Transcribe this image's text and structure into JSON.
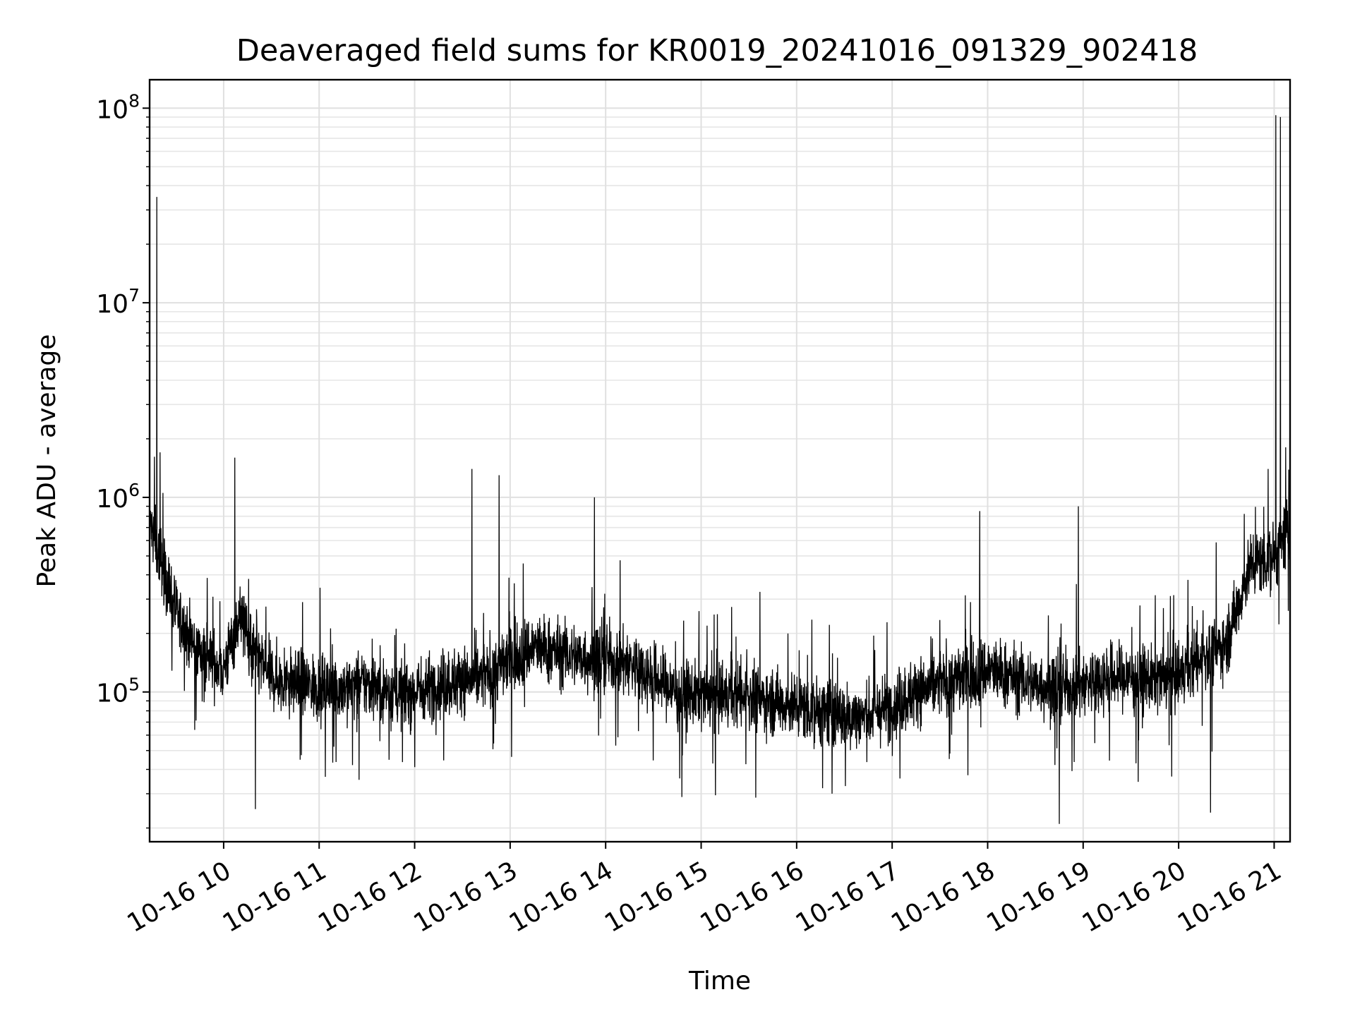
{
  "chart_data": {
    "type": "line",
    "title": "Deaveraged field sums for KR0019_20241016_091329_902418",
    "xlabel": "Time",
    "ylabel": "Peak ADU - average",
    "yscale": "log",
    "ylim": [
      17000,
      140000000
    ],
    "xlim": [
      "2024-10-16 09:13:29",
      "2024-10-16 21:10:00"
    ],
    "grid": true,
    "legend": "none",
    "line_color": "#000000",
    "x_ticks": [
      {
        "t": "2024-10-16 10:00",
        "label": "10-16 10"
      },
      {
        "t": "2024-10-16 11:00",
        "label": "10-16 11"
      },
      {
        "t": "2024-10-16 12:00",
        "label": "10-16 12"
      },
      {
        "t": "2024-10-16 13:00",
        "label": "10-16 13"
      },
      {
        "t": "2024-10-16 14:00",
        "label": "10-16 14"
      },
      {
        "t": "2024-10-16 15:00",
        "label": "10-16 15"
      },
      {
        "t": "2024-10-16 16:00",
        "label": "10-16 16"
      },
      {
        "t": "2024-10-16 17:00",
        "label": "10-16 17"
      },
      {
        "t": "2024-10-16 18:00",
        "label": "10-16 18"
      },
      {
        "t": "2024-10-16 19:00",
        "label": "10-16 19"
      },
      {
        "t": "2024-10-16 20:00",
        "label": "10-16 20"
      },
      {
        "t": "2024-10-16 21:00",
        "label": "10-16 21"
      }
    ],
    "y_ticks": [
      {
        "value": 100000,
        "base": "10",
        "exp": "5"
      },
      {
        "value": 1000000,
        "base": "10",
        "exp": "6"
      },
      {
        "value": 10000000,
        "base": "10",
        "exp": "7"
      },
      {
        "value": 100000000,
        "base": "10",
        "exp": "8"
      }
    ],
    "series": [
      {
        "x": [
          "2024-10-16 09:14",
          "2024-10-16 09:20",
          "2024-10-16 09:30",
          "2024-10-16 09:40",
          "2024-10-16 09:50",
          "2024-10-16 10:00",
          "2024-10-16 10:10",
          "2024-10-16 10:20",
          "2024-10-16 10:30",
          "2024-10-16 10:45",
          "2024-10-16 11:00",
          "2024-10-16 11:15",
          "2024-10-16 11:30",
          "2024-10-16 11:45",
          "2024-10-16 12:00",
          "2024-10-16 12:15",
          "2024-10-16 12:30",
          "2024-10-16 12:45",
          "2024-10-16 13:00",
          "2024-10-16 13:15",
          "2024-10-16 13:30",
          "2024-10-16 13:45",
          "2024-10-16 14:00",
          "2024-10-16 14:15",
          "2024-10-16 14:30",
          "2024-10-16 14:45",
          "2024-10-16 15:00",
          "2024-10-16 15:15",
          "2024-10-16 15:30",
          "2024-10-16 15:45",
          "2024-10-16 16:00",
          "2024-10-16 16:15",
          "2024-10-16 16:30",
          "2024-10-16 16:45",
          "2024-10-16 17:00",
          "2024-10-16 17:15",
          "2024-10-16 17:30",
          "2024-10-16 17:45",
          "2024-10-16 18:00",
          "2024-10-16 18:15",
          "2024-10-16 18:30",
          "2024-10-16 18:45",
          "2024-10-16 19:00",
          "2024-10-16 19:15",
          "2024-10-16 19:30",
          "2024-10-16 19:45",
          "2024-10-16 20:00",
          "2024-10-16 20:15",
          "2024-10-16 20:30",
          "2024-10-16 20:45",
          "2024-10-16 21:00",
          "2024-10-16 21:10"
        ],
        "y": [
          700000,
          500000,
          250000,
          180000,
          150000,
          130000,
          250000,
          150000,
          120000,
          110000,
          105000,
          105000,
          110000,
          100000,
          100000,
          110000,
          115000,
          120000,
          150000,
          170000,
          160000,
          150000,
          150000,
          140000,
          120000,
          100000,
          95000,
          95000,
          95000,
          90000,
          85000,
          80000,
          75000,
          75000,
          85000,
          100000,
          110000,
          120000,
          130000,
          120000,
          110000,
          105000,
          110000,
          120000,
          120000,
          115000,
          120000,
          150000,
          180000,
          450000,
          500000,
          700000
        ]
      }
    ],
    "spikes": [
      {
        "t": "2024-10-16 09:18",
        "value": 35000000
      },
      {
        "t": "2024-10-16 10:07",
        "value": 1600000
      },
      {
        "t": "2024-10-16 12:36",
        "value": 1400000
      },
      {
        "t": "2024-10-16 12:53",
        "value": 1300000
      },
      {
        "t": "2024-10-16 13:53",
        "value": 1000000
      },
      {
        "t": "2024-10-16 17:55",
        "value": 850000
      },
      {
        "t": "2024-10-16 18:57",
        "value": 900000
      },
      {
        "t": "2024-10-16 21:01",
        "value": 92000000
      },
      {
        "t": "2024-10-16 21:04",
        "value": 90000000
      }
    ],
    "dips": [
      {
        "t": "2024-10-16 10:20",
        "value": 25000
      },
      {
        "t": "2024-10-16 18:45",
        "value": 21000
      },
      {
        "t": "2024-10-16 20:20",
        "value": 24000
      }
    ],
    "noise_band": {
      "low_factor": 0.45,
      "high_factor": 2.4
    }
  }
}
